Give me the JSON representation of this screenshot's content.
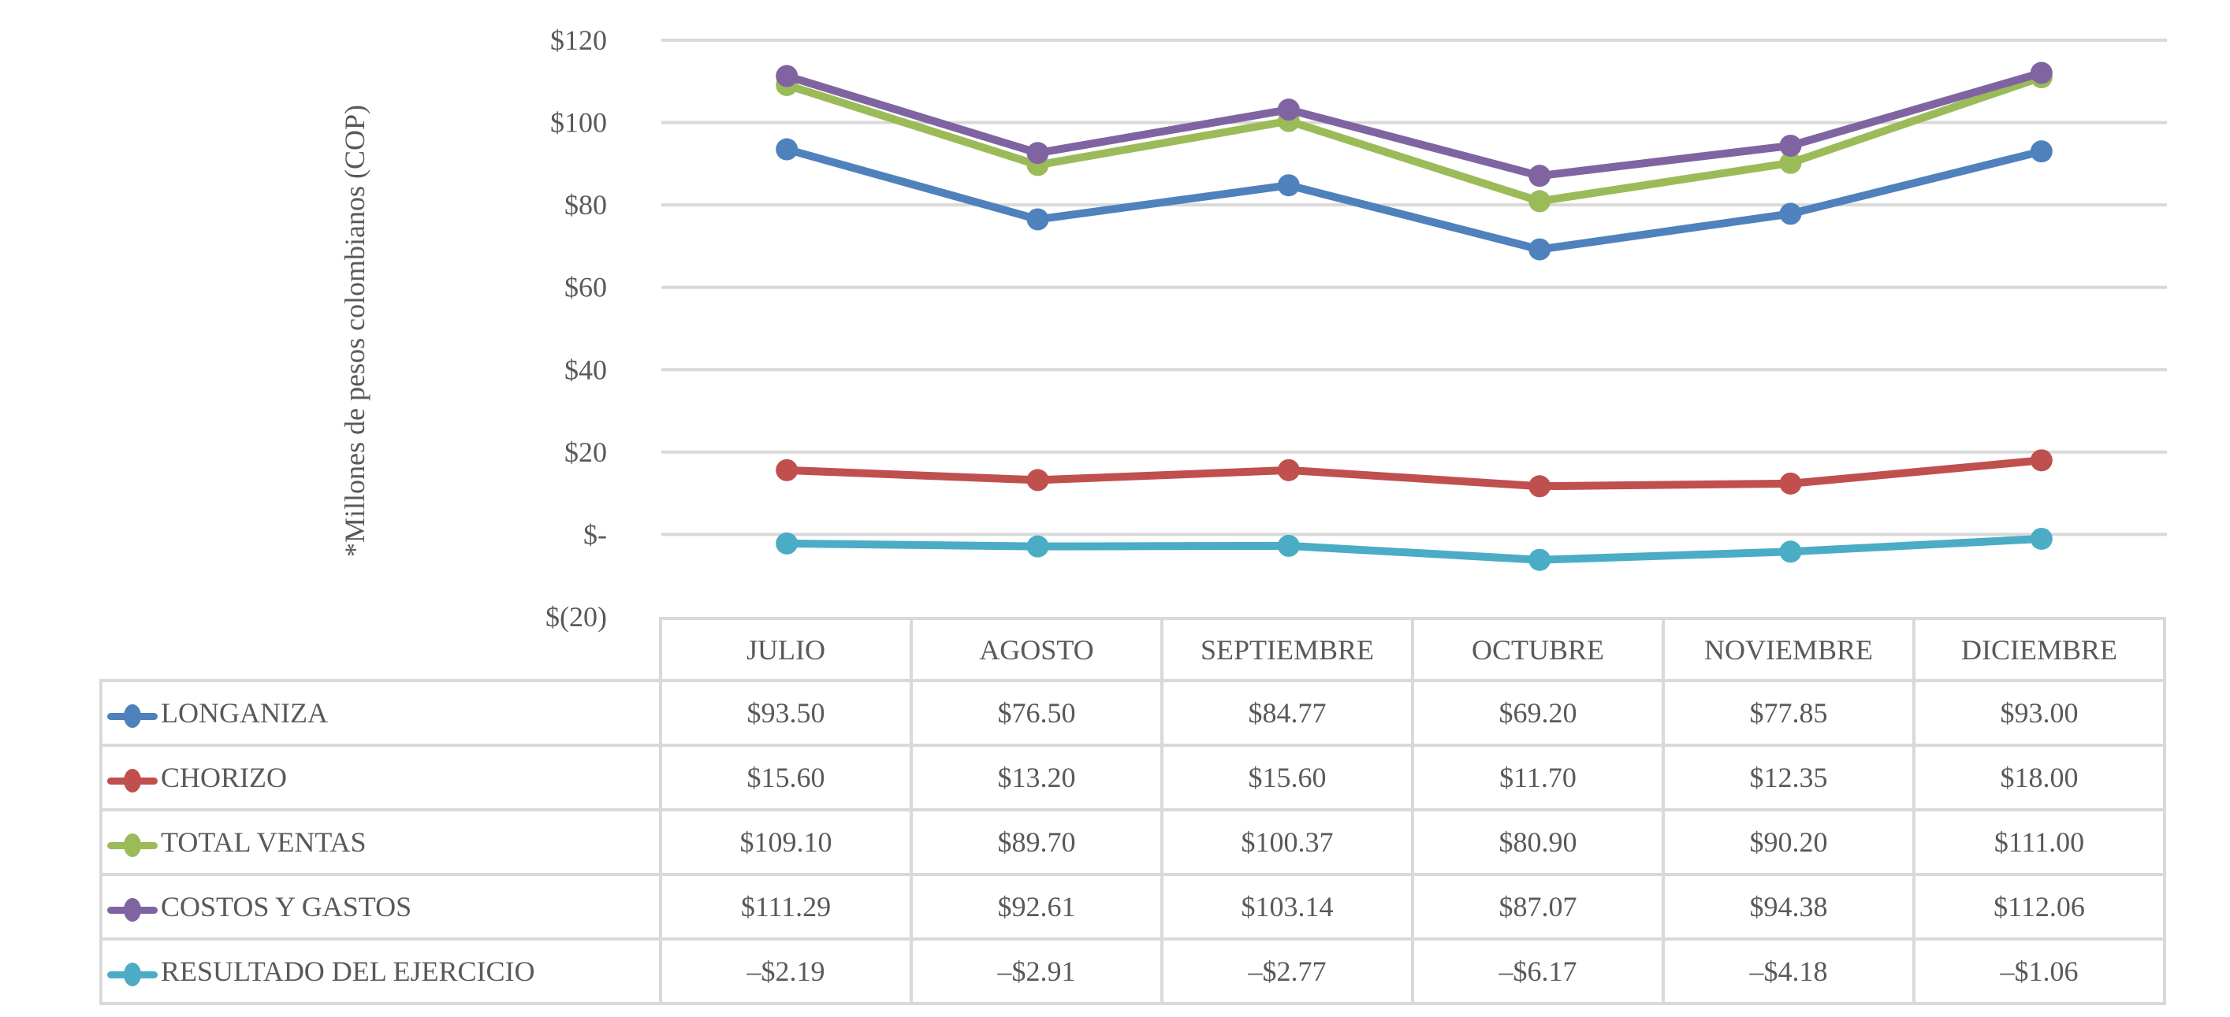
{
  "chart_data": {
    "type": "line",
    "title": "",
    "xlabel": "",
    "ylabel": "*Millones de pesos colombianos (COP)",
    "ylim": [
      -20,
      120
    ],
    "yticks": [
      120,
      100,
      80,
      60,
      40,
      20,
      0,
      -20
    ],
    "ytick_labels": [
      "$120",
      "$100",
      "$80",
      "$60",
      "$40",
      "$20",
      "$-",
      "$(20)"
    ],
    "grid": true,
    "legend": "data-table-bottom",
    "categories": [
      "JULIO",
      "AGOSTO",
      "SEPTIEMBRE",
      "OCTUBRE",
      "NOVIEMBRE",
      "DICIEMBRE"
    ],
    "series": [
      {
        "name": "LONGANIZA",
        "color": "#4f81bd",
        "values": [
          93.5,
          76.5,
          84.77,
          69.2,
          77.85,
          93.0
        ],
        "labels": [
          "$93.50",
          "$76.50",
          "$84.77",
          "$69.20",
          "$77.85",
          "$93.00"
        ]
      },
      {
        "name": "CHORIZO",
        "color": "#c0504d",
        "values": [
          15.6,
          13.2,
          15.6,
          11.7,
          12.35,
          18.0
        ],
        "labels": [
          "$15.60",
          "$13.20",
          "$15.60",
          "$11.70",
          "$12.35",
          "$18.00"
        ]
      },
      {
        "name": "TOTAL VENTAS",
        "color": "#9bbb59",
        "values": [
          109.1,
          89.7,
          100.37,
          80.9,
          90.2,
          111.0
        ],
        "labels": [
          "$109.10",
          "$89.70",
          "$100.37",
          "$80.90",
          "$90.20",
          "$111.00"
        ]
      },
      {
        "name": "COSTOS Y GASTOS",
        "color": "#8064a2",
        "values": [
          111.29,
          92.61,
          103.14,
          87.07,
          94.38,
          112.06
        ],
        "labels": [
          "$111.29",
          "$92.61",
          "$103.14",
          "$87.07",
          "$94.38",
          "$112.06"
        ]
      },
      {
        "name": "RESULTADO DEL EJERCICIO",
        "color": "#4bacc6",
        "values": [
          -2.19,
          -2.91,
          -2.77,
          -6.17,
          -4.18,
          -1.06
        ],
        "labels": [
          "–$2.19",
          "–$2.91",
          "–$2.77",
          "–$6.17",
          "–$4.18",
          "–$1.06"
        ]
      }
    ]
  }
}
